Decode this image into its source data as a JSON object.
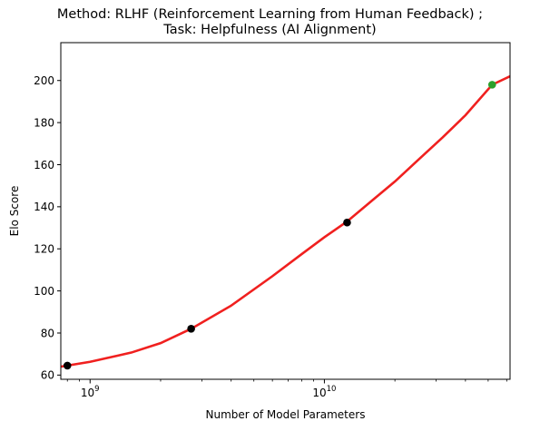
{
  "chart_data": {
    "type": "scatter",
    "title_lines": [
      "Method: RLHF (Reinforcement Learning from Human Feedback) ;",
      "Task: Helpfulness (AI Alignment)"
    ],
    "xlabel": "Number of Model Parameters",
    "ylabel": "Elo Score",
    "xscale": "log",
    "xlim": [
      750000000,
      62000000000
    ],
    "ylim": [
      58,
      218
    ],
    "x_ticks": [
      {
        "value": 1000000000,
        "base": "10",
        "exp": "9"
      },
      {
        "value": 10000000000,
        "base": "10",
        "exp": "10"
      }
    ],
    "y_ticks": [
      60,
      80,
      100,
      120,
      140,
      160,
      180,
      200
    ],
    "grid": false,
    "points": [
      {
        "x": 800000000,
        "y": 64.5,
        "color": "#000000"
      },
      {
        "x": 2700000000,
        "y": 82,
        "color": "#000000"
      },
      {
        "x": 12500000000,
        "y": 132.5,
        "color": "#000000"
      },
      {
        "x": 52000000000,
        "y": 198,
        "color": "#2ca02c"
      }
    ],
    "fit_line": {
      "color": "#f0201f",
      "x": [
        750000000,
        1000000000,
        1500000000,
        2000000000,
        2700000000,
        4000000000,
        6000000000,
        8000000000,
        10000000000,
        12500000000,
        16000000000,
        20000000000,
        25000000000,
        32000000000,
        40000000000,
        52000000000,
        62000000000
      ],
      "y": [
        64,
        66.3,
        70.7,
        75.2,
        82,
        93,
        107,
        117.5,
        125.5,
        133,
        143,
        152,
        162,
        173,
        183.5,
        198,
        202
      ]
    }
  }
}
